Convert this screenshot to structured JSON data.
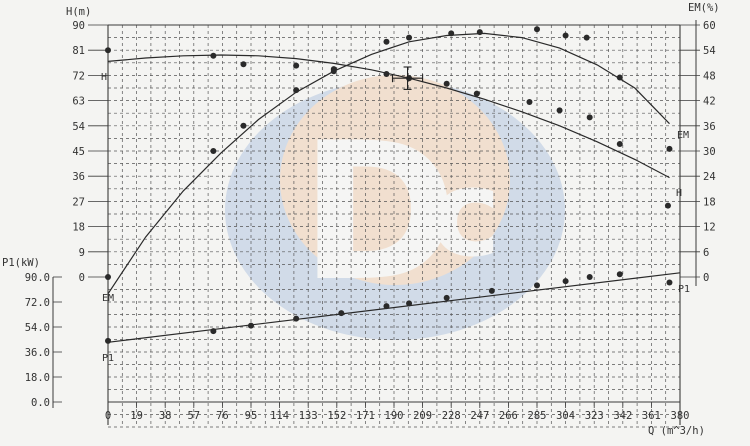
{
  "chart_data": [
    {
      "type": "line",
      "panel": "head-efficiency",
      "x_axis": {
        "label": "Q (m^3/h)",
        "ticks": [
          "0",
          "19",
          "38",
          "57",
          "76",
          "95",
          "114",
          "133",
          "152",
          "171",
          "190",
          "209",
          "228",
          "247",
          "266",
          "285",
          "304",
          "323",
          "342",
          "361",
          "380"
        ],
        "range": [
          0,
          380
        ]
      },
      "y_left": {
        "label": "H(m)",
        "ticks": [
          "0",
          "9",
          "18",
          "27",
          "36",
          "45",
          "54",
          "63",
          "72",
          "81",
          "90"
        ],
        "range": [
          0,
          90
        ]
      },
      "y_right": {
        "label": "EM(%)",
        "ticks": [
          "0",
          "6",
          "12",
          "18",
          "24",
          "30",
          "36",
          "42",
          "48",
          "54",
          "60"
        ],
        "range": [
          0,
          60
        ]
      },
      "grid": "dashed",
      "series": [
        {
          "name": "H",
          "axis": "left",
          "curve": {
            "x": [
              0,
              25,
              50,
              75,
              100,
              125,
              150,
              175,
              200,
              225,
              250,
              275,
              300,
              325,
              350,
              373
            ],
            "y": [
              77,
              78.2,
              79,
              79.3,
              79,
              78,
              76.3,
              74,
              71,
              67.5,
              63.5,
              59,
              54,
              48.3,
              42,
              35.5
            ]
          },
          "points": {
            "x": [
              0,
              70,
              90,
              125,
              150,
              185,
              200,
              225,
              245,
              280,
              300,
              320,
              340,
              372
            ],
            "y": [
              81,
              79,
              76,
              75.5,
              73.5,
              72.5,
              71,
              69,
              65.5,
              62.5,
              59.5,
              57,
              47.5,
              25.5
            ]
          }
        },
        {
          "name": "EM",
          "axis": "right",
          "curve": {
            "x": [
              0,
              25,
              50,
              75,
              100,
              125,
              150,
              175,
              200,
              225,
              250,
              275,
              300,
              325,
              350,
              373
            ],
            "y": [
              -4,
              9.5,
              20.5,
              29.5,
              37.5,
              44,
              49,
              53,
              56,
              57.5,
              58,
              57,
              54.5,
              50.5,
              45,
              36.5
            ]
          },
          "points": {
            "x": [
              0,
              70,
              90,
              125,
              150,
              185,
              200,
              228,
              247,
              285,
              304,
              318,
              340,
              373
            ],
            "y": [
              0,
              30,
              36,
              44.5,
              49.5,
              56,
              57,
              58,
              58.3,
              59,
              57.5,
              57,
              47.5,
              30.5
            ]
          }
        }
      ],
      "error_bar": {
        "x": 199,
        "y": 71,
        "x_err": 10,
        "y_err": 4
      },
      "curve_labels": [
        "H",
        "EM",
        "EM",
        "H"
      ]
    },
    {
      "type": "line",
      "panel": "power",
      "y_left": {
        "label": "P1(kW)",
        "ticks": [
          "90.0",
          "72.0",
          "54.0",
          "36.0",
          "18.0",
          "0.0"
        ],
        "range": [
          0,
          90
        ]
      },
      "series": [
        {
          "name": "P1",
          "curve": {
            "x": [
              0,
              380
            ],
            "y": [
              43,
              93
            ]
          },
          "points": {
            "x": [
              0,
              70,
              95,
              125,
              155,
              185,
              200,
              225,
              255,
              285,
              304,
              320,
              340,
              373
            ],
            "y": [
              44,
              51,
              55,
              60,
              64,
              69,
              71,
              75,
              80,
              84,
              87,
              90,
              92,
              86
            ]
          }
        }
      ],
      "curve_labels": [
        "P1",
        "P1"
      ]
    }
  ]
}
